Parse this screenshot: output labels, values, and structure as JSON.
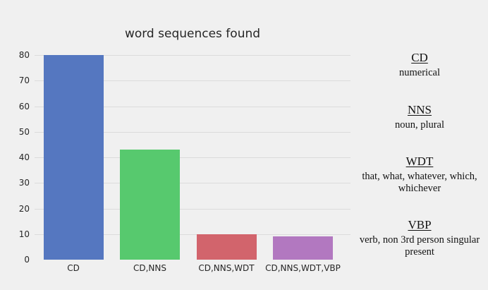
{
  "title": "word sequences found",
  "chart_data": {
    "type": "bar",
    "title": "word sequences found",
    "categories": [
      "CD",
      "CD,NNS",
      "CD,NNS,WDT",
      "CD,NNS,WDT,VBP"
    ],
    "values": [
      80,
      43,
      10,
      9
    ],
    "bar_colors": [
      "#5577c0",
      "#57c96e",
      "#d2646c",
      "#b278c0"
    ],
    "xlabel": "",
    "ylabel": "",
    "ylim": [
      0,
      80
    ],
    "yticks": [
      0,
      10,
      20,
      30,
      40,
      50,
      60,
      70,
      80
    ],
    "grid": true,
    "gridline_color": "#dbdbdb",
    "background_color": "#f0f0f0",
    "text_color": "#262626",
    "legend_position": "none"
  },
  "glossary": {
    "entries": [
      {
        "term": "CD",
        "definition": "numerical"
      },
      {
        "term": "NNS",
        "definition": "noun, plural"
      },
      {
        "term": "WDT",
        "definition": "that, what, whatever, which, whichever"
      },
      {
        "term": "VBP",
        "definition": "verb, non 3rd person singular present"
      }
    ]
  }
}
